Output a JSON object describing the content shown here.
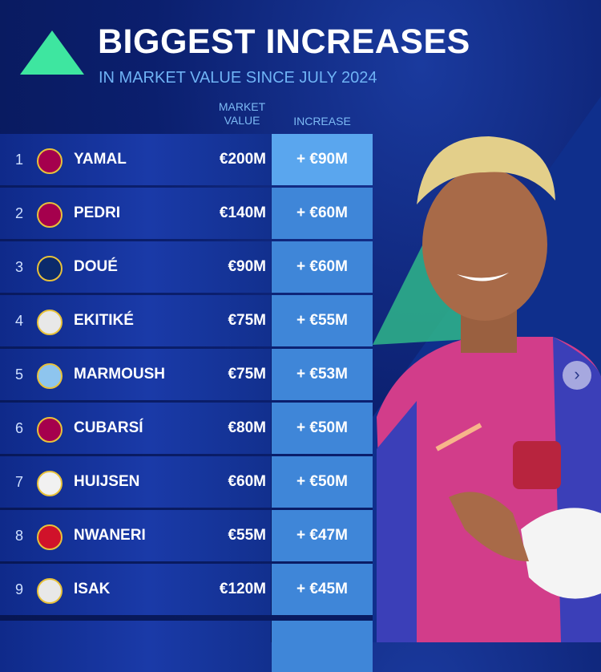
{
  "header": {
    "title": "BIGGEST INCREASES",
    "subtitle": "IN MARKET VALUE SINCE JULY 2024"
  },
  "table": {
    "columns": [
      "MARKET VALUE",
      "INCREASE"
    ],
    "rows": [
      [
        "1",
        "YAMAL",
        "€200M",
        "+ €90M"
      ],
      [
        "2",
        "PEDRI",
        "€140M",
        "+ €60M"
      ],
      [
        "3",
        "DOUÉ",
        "€90M",
        "+ €60M"
      ],
      [
        "4",
        "EKITIKÉ",
        "€75M",
        "+ €55M"
      ],
      [
        "5",
        "MARMOUSH",
        "€75M",
        "+ €53M"
      ],
      [
        "6",
        "CUBARSÍ",
        "€80M",
        "+ €50M"
      ],
      [
        "7",
        "HUIJSEN",
        "€60M",
        "+ €50M"
      ],
      [
        "8",
        "NWANERI",
        "€55M",
        "+ €47M"
      ],
      [
        "9",
        "ISAK",
        "€120M",
        "+ €45M"
      ]
    ]
  }
}
